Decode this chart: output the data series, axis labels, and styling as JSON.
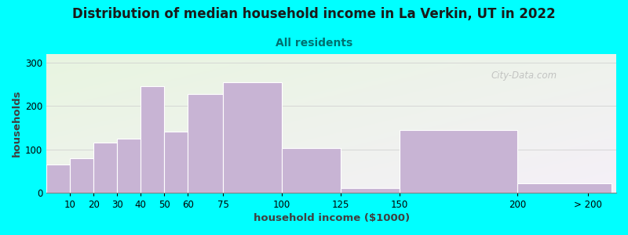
{
  "title": "Distribution of median household income in La Verkin, UT in 2022",
  "subtitle": "All residents",
  "xlabel": "household income ($1000)",
  "ylabel": "households",
  "bar_color": "#c8b4d4",
  "background_color": "#00ffff",
  "categories": [
    "10",
    "20",
    "30",
    "40",
    "50",
    "60",
    "75",
    "100",
    "125",
    "150",
    "200",
    "> 200"
  ],
  "bar_left_edges": [
    0,
    10,
    20,
    30,
    40,
    50,
    60,
    75,
    100,
    125,
    150,
    200
  ],
  "bar_right_edges": [
    10,
    20,
    30,
    40,
    50,
    60,
    75,
    100,
    125,
    150,
    200,
    240
  ],
  "tick_positions": [
    10,
    20,
    30,
    40,
    50,
    60,
    75,
    100,
    125,
    150,
    200,
    230
  ],
  "values": [
    65,
    80,
    115,
    125,
    245,
    140,
    228,
    255,
    103,
    10,
    145,
    22
  ],
  "ylim": [
    0,
    320
  ],
  "yticks": [
    0,
    100,
    200,
    300
  ],
  "watermark": "City-Data.com",
  "title_fontsize": 12,
  "subtitle_fontsize": 10,
  "axis_label_fontsize": 9.5,
  "tick_fontsize": 8.5
}
